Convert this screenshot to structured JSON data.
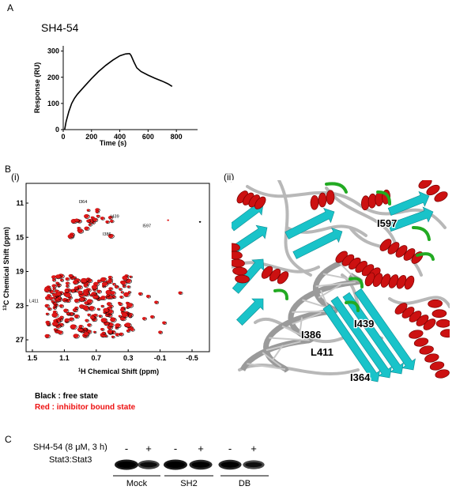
{
  "panel_a": {
    "letter": "A",
    "chart_data": {
      "type": "line",
      "title": "SH4-54",
      "xlabel": "Time (s)",
      "ylabel": "Response (RU)",
      "xlim": [
        0,
        950
      ],
      "ylim": [
        0,
        320
      ],
      "xticks": [
        "0",
        "200",
        "400",
        "600",
        "800"
      ],
      "yticks": [
        "0",
        "100",
        "200",
        "300"
      ],
      "series": [
        {
          "x": [
            10,
            20,
            40,
            60,
            80,
            100,
            150,
            200,
            250,
            300,
            350,
            400,
            440,
            460,
            470,
            480,
            500,
            520,
            550,
            600,
            650,
            700,
            740,
            770
          ],
          "y": [
            0,
            30,
            70,
            100,
            120,
            135,
            165,
            195,
            222,
            245,
            265,
            282,
            289,
            290,
            290,
            283,
            258,
            236,
            222,
            208,
            196,
            185,
            175,
            165
          ]
        }
      ]
    }
  },
  "panel_b": {
    "letter": "B",
    "sub_i": "(i)",
    "sub_ii": "(ii)",
    "nmr": {
      "xlabel_sup": "1",
      "xlabel": "H Chemical Shift (ppm)",
      "ylabel_sup": "13",
      "ylabel": "C Chemical Shift (ppm)",
      "xticks": [
        "1.5",
        "1.1",
        "0.7",
        "0.3",
        "-0.1",
        "-0.5"
      ],
      "yticks": [
        "11",
        "15",
        "19",
        "23",
        "27"
      ],
      "peak_labels": [
        "I364",
        "I439",
        "I386",
        "I597",
        "L411"
      ]
    },
    "structure_labels": [
      "I597",
      "I439",
      "I386",
      "L411",
      "I364"
    ],
    "legend": {
      "black": "Black : free state",
      "red": "Red : inhibitor bound state"
    },
    "colors": {
      "helix": "#cc1111",
      "sheet": "#19c3c9",
      "turn": "#22aa22",
      "coil": "#b8b8b8"
    }
  },
  "panel_c": {
    "letter": "C",
    "treatment": "SH4-54 (8 μM, 3 h)",
    "row_label": "Stat3:Stat3",
    "signs": [
      "-",
      "+",
      "-",
      "+",
      "-",
      "+"
    ],
    "groups": [
      "Mock",
      "SH2",
      "DB"
    ],
    "band_intensities": [
      1.0,
      0.6,
      1.0,
      0.85,
      0.85,
      0.55
    ]
  }
}
